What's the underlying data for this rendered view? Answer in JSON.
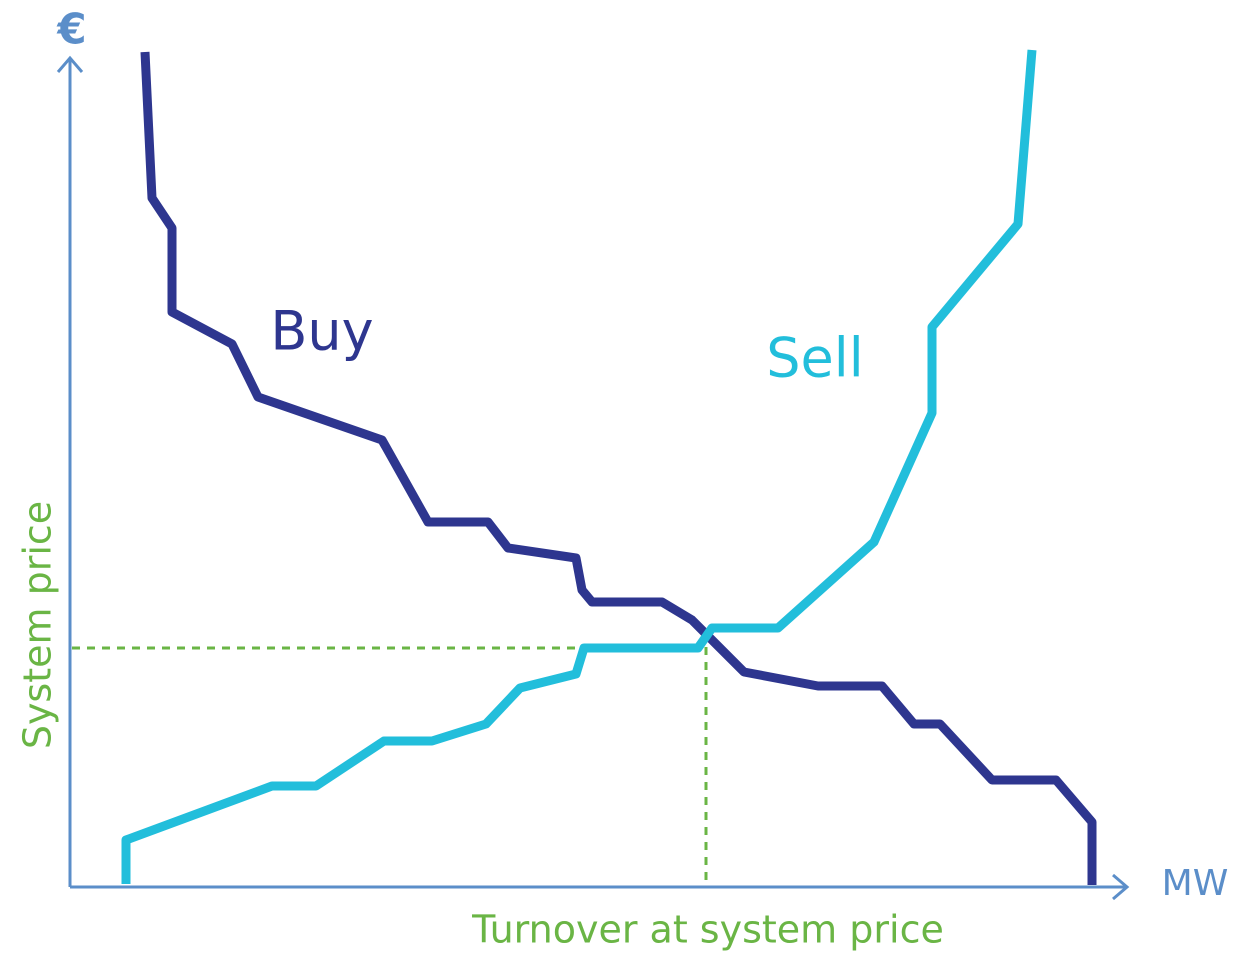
{
  "axis": {
    "y_label": "€",
    "x_label": "MW"
  },
  "curves": {
    "buy": "Buy",
    "sell": "Sell"
  },
  "annotations": {
    "price": "System price",
    "turnover": "Turnover at system price"
  }
}
